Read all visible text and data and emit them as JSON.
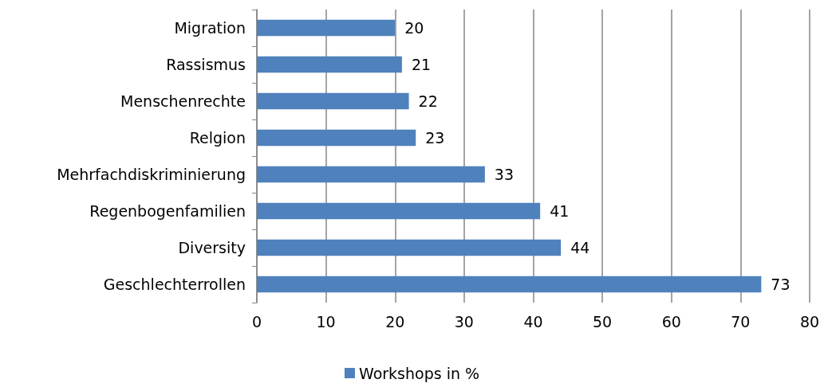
{
  "chart_data": {
    "type": "bar",
    "orientation": "horizontal",
    "categories": [
      "Migration",
      "Rassismus",
      "Menschenrechte",
      "Relgion",
      "Mehrfachdiskriminierung",
      "Regenbogenfamilien",
      "Diversity",
      "Geschlechterrollen"
    ],
    "series": [
      {
        "name": "Workshops in %",
        "color": "#4f81bd",
        "values": [
          20,
          21,
          22,
          23,
          33,
          41,
          44,
          73
        ]
      }
    ],
    "xlim": [
      0,
      80
    ],
    "xticks": [
      0,
      10,
      20,
      30,
      40,
      50,
      60,
      70,
      80
    ],
    "grid": "x",
    "legend": "bottom",
    "data_labels": true
  }
}
